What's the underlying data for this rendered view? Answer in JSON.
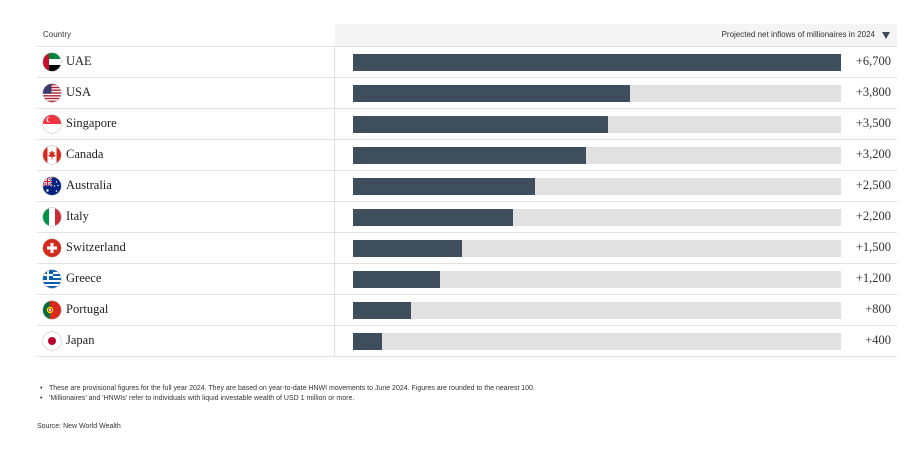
{
  "header": {
    "country_label": "Country",
    "metric_label": "Projected net inflows of millionaires in 2024",
    "sort_icon": "triangle-down-icon"
  },
  "chart_data": {
    "type": "bar",
    "orientation": "horizontal",
    "categories": [
      "UAE",
      "USA",
      "Singapore",
      "Canada",
      "Australia",
      "Italy",
      "Switzerland",
      "Greece",
      "Portugal",
      "Japan"
    ],
    "values": [
      6700,
      3800,
      3500,
      3200,
      2500,
      2200,
      1500,
      1200,
      800,
      400
    ],
    "value_labels": [
      "+6,700",
      "+3,800",
      "+3,500",
      "+3,200",
      "+2,500",
      "+2,200",
      "+1,500",
      "+1,200",
      "+800",
      "+400"
    ],
    "xlim": [
      0,
      6700
    ],
    "bar_color": "#3f4e5d",
    "track_color": "#e1e1e1"
  },
  "flags": [
    "uae-flag-icon",
    "usa-flag-icon",
    "singapore-flag-icon",
    "canada-flag-icon",
    "australia-flag-icon",
    "italy-flag-icon",
    "switzerland-flag-icon",
    "greece-flag-icon",
    "portugal-flag-icon",
    "japan-flag-icon"
  ],
  "notes": [
    "These are provisional figures for the full year 2024. They are based on year-to-date HNWI movements to June 2024. Figures are rounded to the nearest 100.",
    "'Millionaires' and 'HNWIs' refer to individuals with liquid investable wealth of USD 1 million or more."
  ],
  "source": "Source: New World Wealth"
}
